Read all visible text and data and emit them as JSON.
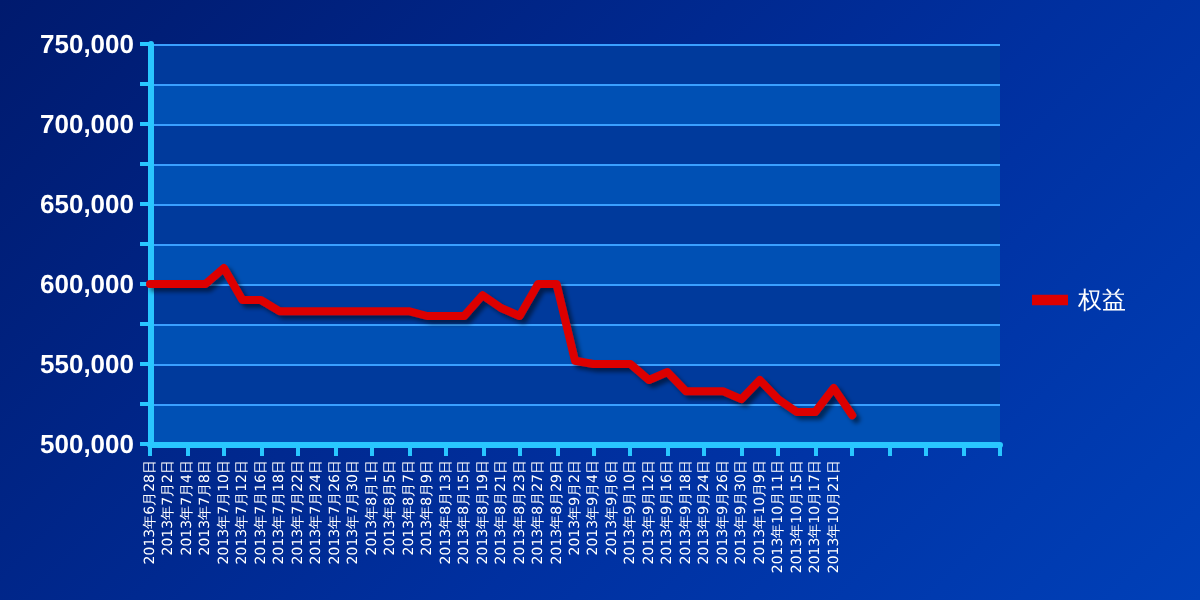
{
  "chart_data": {
    "type": "line",
    "categories": [
      "2013年6月28日",
      "2013年7月2日",
      "2013年7月4日",
      "2013年7月8日",
      "2013年7月10日",
      "2013年7月12日",
      "2013年7月16日",
      "2013年7月18日",
      "2013年7月22日",
      "2013年7月24日",
      "2013年7月26日",
      "2013年7月30日",
      "2013年8月1日",
      "2013年8月5日",
      "2013年8月7日",
      "2013年8月9日",
      "2013年8月13日",
      "2013年8月15日",
      "2013年8月19日",
      "2013年8月21日",
      "2013年8月23日",
      "2013年8月27日",
      "2013年8月29日",
      "2013年9月2日",
      "2013年9月4日",
      "2013年9月6日",
      "2013年9月10日",
      "2013年9月12日",
      "2013年9月16日",
      "2013年9月18日",
      "2013年9月24日",
      "2013年9月26日",
      "2013年9月30日",
      "2013年10月9日",
      "2013年10月11日",
      "2013年10月15日",
      "2013年10月17日",
      "2013年10月21日",
      null,
      null,
      null,
      null,
      null,
      null,
      null,
      null,
      null
    ],
    "series": [
      {
        "name": "权益",
        "color": "#dd0000",
        "values": [
          600000,
          600000,
          600000,
          600000,
          610000,
          590000,
          590000,
          583000,
          583000,
          583000,
          583000,
          583000,
          583000,
          583000,
          583000,
          580000,
          580000,
          580000,
          593000,
          585000,
          580000,
          600000,
          600000,
          552000,
          550000,
          550000,
          550000,
          540000,
          545000,
          533000,
          533000,
          533000,
          528000,
          540000,
          528000,
          520000,
          520000,
          535000,
          518000,
          null,
          null,
          null,
          null,
          null,
          null,
          null,
          null
        ]
      }
    ],
    "ylim": [
      500000,
      750000
    ],
    "yticks": [
      {
        "value": 500000,
        "label": "500,000"
      },
      {
        "value": 525000,
        "label": null
      },
      {
        "value": 550000,
        "label": "550,000"
      },
      {
        "value": 575000,
        "label": null
      },
      {
        "value": 600000,
        "label": "600,000"
      },
      {
        "value": 625000,
        "label": null
      },
      {
        "value": 650000,
        "label": "650,000"
      },
      {
        "value": 675000,
        "label": null
      },
      {
        "value": 700000,
        "label": "700,000"
      },
      {
        "value": 725000,
        "label": null
      },
      {
        "value": 750000,
        "label": "750,000"
      }
    ],
    "grid": "y",
    "legend": "right",
    "marker": "none",
    "line_style": "solid"
  }
}
